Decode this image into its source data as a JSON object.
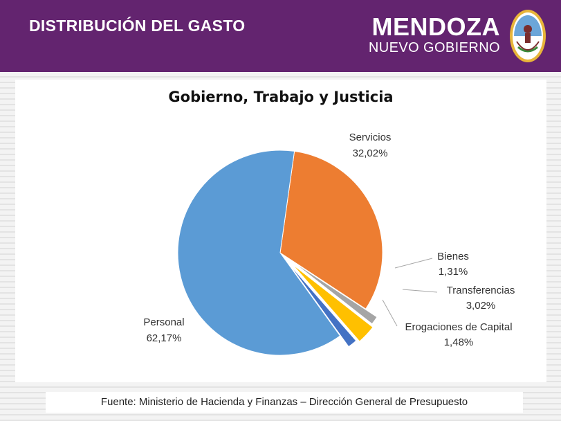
{
  "header": {
    "title": "DISTRIBUCIÓN DEL GASTO",
    "brand_main": "MENDOZA",
    "brand_sub": "NUEVO GOBIERNO",
    "background_color": "#63246f"
  },
  "chart_data": {
    "type": "pie",
    "title": "Gobierno, Trabajo y Justicia",
    "slices": [
      {
        "label": "Servicios",
        "value": 32.02,
        "display": "32,02%",
        "color": "#ed7d31"
      },
      {
        "label": "Bienes",
        "value": 1.31,
        "display": "1,31%",
        "color": "#a5a5a5"
      },
      {
        "label": "Transferencias",
        "value": 3.02,
        "display": "3,02%",
        "color": "#ffc000"
      },
      {
        "label": "Erogaciones de Capital",
        "value": 1.48,
        "display": "1,48%",
        "color": "#4472c4"
      },
      {
        "label": "Personal",
        "value": 62.17,
        "display": "62,17%",
        "color": "#5b9bd5"
      }
    ],
    "exploded": true,
    "legend": "none"
  },
  "footer": {
    "source": "Fuente: Ministerio de Hacienda y Finanzas – Dirección General de Presupuesto"
  }
}
